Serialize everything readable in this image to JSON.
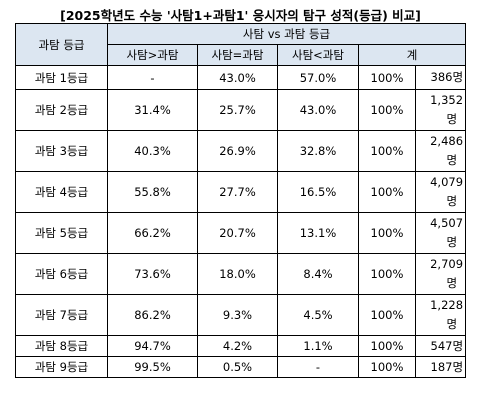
{
  "title": "[2025학년도 수능 '사탐1+과탐1' 응시자의 탐구 성적(등급) 비교]",
  "header": {
    "grade_col": "과탐 등급",
    "group": "사탐 vs 과탐 등급",
    "cols": [
      "사탐>과탐",
      "사탐=과탐",
      "사탐<과탐",
      "계"
    ]
  },
  "rows": [
    {
      "grade": "과탐 1등급",
      "gt": "-",
      "eq": "43.0%",
      "lt": "57.0%",
      "total": "100%",
      "count": "386",
      "unit": "명"
    },
    {
      "grade": "과탐 2등급",
      "gt": "31.4%",
      "eq": "25.7%",
      "lt": "43.0%",
      "total": "100%",
      "count": "1,352",
      "unit": "명"
    },
    {
      "grade": "과탐 3등급",
      "gt": "40.3%",
      "eq": "26.9%",
      "lt": "32.8%",
      "total": "100%",
      "count": "2,486",
      "unit": "명"
    },
    {
      "grade": "과탐 4등급",
      "gt": "55.8%",
      "eq": "27.7%",
      "lt": "16.5%",
      "total": "100%",
      "count": "4,079",
      "unit": "명"
    },
    {
      "grade": "과탐 5등급",
      "gt": "66.2%",
      "eq": "20.7%",
      "lt": "13.1%",
      "total": "100%",
      "count": "4,507",
      "unit": "명"
    },
    {
      "grade": "과탐 6등급",
      "gt": "73.6%",
      "eq": "18.0%",
      "lt": "8.4%",
      "total": "100%",
      "count": "2,709",
      "unit": "명"
    },
    {
      "grade": "과탐 7등급",
      "gt": "86.2%",
      "eq": "9.3%",
      "lt": "4.5%",
      "total": "100%",
      "count": "1,228",
      "unit": "명"
    },
    {
      "grade": "과탐 8등급",
      "gt": "94.7%",
      "eq": "4.2%",
      "lt": "1.1%",
      "total": "100%",
      "count": "547",
      "unit": "명"
    },
    {
      "grade": "과탐 9등급",
      "gt": "99.5%",
      "eq": "0.5%",
      "lt": "-",
      "total": "100%",
      "count": "187",
      "unit": "명"
    }
  ]
}
